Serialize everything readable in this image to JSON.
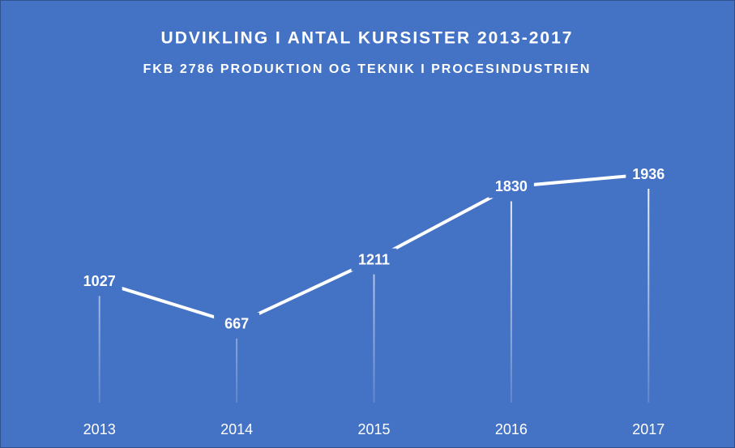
{
  "chart_data": {
    "type": "line",
    "title": "UDVIKLING I ANTAL KURSISTER 2013-2017",
    "subtitle": "FKB 2786 PRODUKTION OG TEKNIK I PROCESINDUSTRIEN",
    "categories": [
      "2013",
      "2014",
      "2015",
      "2016",
      "2017"
    ],
    "values": [
      1027,
      667,
      1211,
      1830,
      1936
    ],
    "color": "#ffffff",
    "background": "#4472c4"
  }
}
